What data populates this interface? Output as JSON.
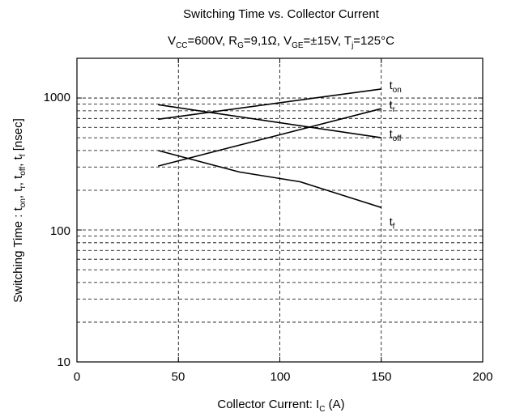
{
  "chart_data": {
    "type": "line",
    "title": "Switching Time vs. Collector Current",
    "subtitle": {
      "vcc_main": "V",
      "vcc_sub": "CC",
      "vcc_val": "=600V, R",
      "rg_sub": "G",
      "rg_val": "=9,1Ω, V",
      "vge_sub": "GE",
      "vge_val": "=±15V, T",
      "tj_sub": "j",
      "tj_val": "=125°C"
    },
    "xlabel": {
      "main": "Collector Current: I",
      "sub": "C",
      "tail": " (A)"
    },
    "ylabel": {
      "p1": "Switching Time : t",
      "s1": "on",
      "p2": ", t",
      "s2": "r",
      "p3": ", t",
      "s3": "off",
      "p4": ", t",
      "s4": "f",
      "p5": "  [nsec]"
    },
    "xlim": [
      0,
      200
    ],
    "ylim": [
      10,
      2000
    ],
    "yscale": "log",
    "x_ticks": [
      "0",
      "50",
      "100",
      "150",
      "200"
    ],
    "y_ticks": [
      "10",
      "100",
      "1000"
    ],
    "grid": "dashed",
    "series": [
      {
        "name": "t",
        "sub": "on",
        "x": [
          40,
          150
        ],
        "y": [
          690,
          1170
        ]
      },
      {
        "name": "t",
        "sub": "r",
        "x": [
          40,
          150
        ],
        "y": [
          305,
          830
        ]
      },
      {
        "name": "t",
        "sub": "off",
        "x": [
          40,
          150
        ],
        "y": [
          890,
          500
        ]
      },
      {
        "name": "t",
        "sub": "f",
        "x": [
          40,
          80,
          110,
          150
        ],
        "y": [
          400,
          275,
          232,
          148
        ]
      }
    ]
  }
}
